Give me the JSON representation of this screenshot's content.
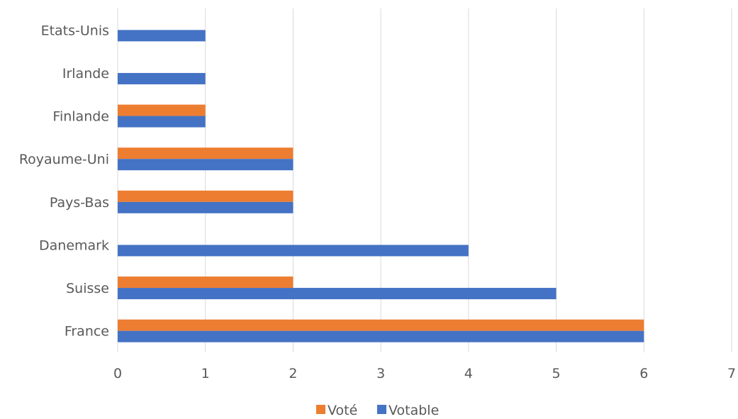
{
  "chart_data": {
    "type": "bar",
    "orientation": "horizontal",
    "categories": [
      "Etats-Unis",
      "Irlande",
      "Finlande",
      "Royaume-Uni",
      "Pays-Bas",
      "Danemark",
      "Suisse",
      "France"
    ],
    "series": [
      {
        "name": "Voté",
        "color": "#ed7d31",
        "values": [
          0,
          0,
          1,
          2,
          2,
          0,
          2,
          6
        ]
      },
      {
        "name": "Votable",
        "color": "#4472c4",
        "values": [
          1,
          1,
          1,
          2,
          2,
          4,
          5,
          6
        ]
      }
    ],
    "xticks": [
      "0",
      "1",
      "2",
      "3",
      "4",
      "5",
      "6",
      "7"
    ],
    "xlim": [
      0,
      7
    ],
    "grid": true,
    "legend_position": "bottom"
  }
}
